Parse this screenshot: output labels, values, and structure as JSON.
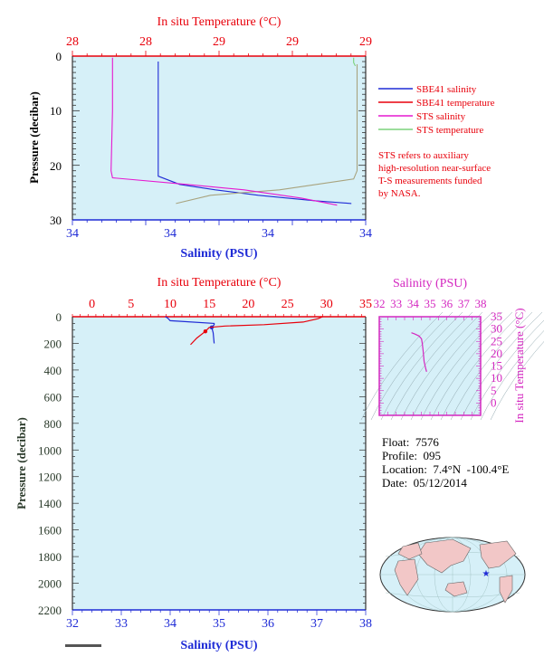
{
  "colors": {
    "plot_bg": "#d6f0f8",
    "red": "#e8000b",
    "blue": "#1f2bd6",
    "magenta": "#e619d0",
    "green": "#7bd27b",
    "olive": "#a8a37e",
    "pressure_label": "#2a3a2a",
    "legend_note": "#e8000b",
    "ts_panel": "#d428c0"
  },
  "top_panel": {
    "temp_title": "In situ Temperature (°C)",
    "salinity_title": "Salinity (PSU)",
    "pressure_title": "Pressure (decibar)",
    "temp_ticks": [
      "28",
      "28",
      "29",
      "29",
      "29"
    ],
    "salinity_ticks": [
      "34",
      "34",
      "34",
      "34"
    ],
    "pressure_ticks": [
      "0",
      "10",
      "20",
      "30"
    ],
    "legend": [
      {
        "label": "SBE41 salinity",
        "color": "#1f2bd6"
      },
      {
        "label": "SBE41 temperature",
        "color": "#e8000b"
      },
      {
        "label": "STS salinity",
        "color": "#e619d0"
      },
      {
        "label": "STS temperature",
        "color": "#7bd27b"
      }
    ],
    "note_lines": [
      "STS refers to auxiliary",
      "high-resolution near-surface",
      "T-S measurements funded",
      "by NASA."
    ]
  },
  "bottom_panel": {
    "temp_title": "In situ Temperature (°C)",
    "salinity_title": "Salinity (PSU)",
    "pressure_title": "Pressure (decibar)",
    "temp_ticks": [
      "0",
      "5",
      "10",
      "15",
      "20",
      "25",
      "30",
      "35"
    ],
    "salinity_ticks": [
      "32",
      "33",
      "34",
      "35",
      "36",
      "37",
      "38"
    ],
    "pressure_ticks": [
      "0",
      "200",
      "400",
      "600",
      "800",
      "1000",
      "1200",
      "1400",
      "1600",
      "1800",
      "2000",
      "2200"
    ]
  },
  "ts_diagram": {
    "salinity_title": "Salinity (PSU)",
    "temp_title": "In situ Temperature (°C)",
    "salinity_ticks": [
      "32",
      "33",
      "34",
      "35",
      "36",
      "37",
      "38"
    ],
    "temp_ticks": [
      "0",
      "5",
      "10",
      "15",
      "20",
      "25",
      "30",
      "35"
    ]
  },
  "float_info": {
    "float": "Float:  7576",
    "profile": "Profile:  095",
    "location": "Location:  7.4°N  -100.4°E",
    "date": "Date:  05/12/2014"
  },
  "chart_data": [
    {
      "type": "line",
      "title": "",
      "xlabel": "Salinity (PSU)",
      "x2label": "In situ Temperature (°C)",
      "ylabel": "Pressure (decibar)",
      "ylim": [
        30,
        0
      ],
      "series": [
        {
          "name": "SBE41 salinity",
          "x_units": "PSU",
          "points": [
            [
              33.7,
              1
            ],
            [
              33.7,
              10
            ],
            [
              33.7,
              22
            ],
            [
              33.85,
              23.5
            ],
            [
              34.1,
              24.5
            ],
            [
              34.4,
              25.5
            ],
            [
              34.8,
              26.5
            ],
            [
              35.05,
              27
            ]
          ]
        },
        {
          "name": "SBE41 temperature",
          "x_units": "degC",
          "points": [
            [
              28.95,
              1.5
            ],
            [
              28.95,
              10
            ],
            [
              28.95,
              21
            ],
            [
              28.93,
              22.5
            ],
            [
              28.5,
              24.5
            ],
            [
              28.1,
              25.5
            ],
            [
              27.9,
              27
            ]
          ]
        },
        {
          "name": "STS salinity",
          "x_units": "PSU",
          "points": [
            [
              33.38,
              0.3
            ],
            [
              33.38,
              10
            ],
            [
              33.37,
              21
            ],
            [
              33.38,
              22.3
            ],
            [
              33.9,
              23.5
            ],
            [
              34.3,
              24.5
            ],
            [
              34.7,
              26
            ],
            [
              34.95,
              27.3
            ]
          ]
        },
        {
          "name": "STS temperature",
          "x_units": "degC",
          "points": [
            [
              28.93,
              0.3
            ],
            [
              28.93,
              1.2
            ],
            [
              28.94,
              1.8
            ]
          ]
        }
      ]
    },
    {
      "type": "line",
      "title": "",
      "xlabel": "Salinity (PSU)",
      "x2label": "In situ Temperature (°C)",
      "ylabel": "Pressure (decibar)",
      "xlim": [
        32,
        38
      ],
      "x2lim": [
        0,
        35
      ],
      "ylim": [
        2200,
        0
      ],
      "series": [
        {
          "name": "SBE41 salinity",
          "x_units": "PSU",
          "points": [
            [
              33.9,
              0
            ],
            [
              33.95,
              10
            ],
            [
              34.0,
              30
            ],
            [
              34.9,
              50
            ],
            [
              34.9,
              60
            ],
            [
              34.85,
              80
            ],
            [
              34.88,
              120
            ],
            [
              34.9,
              200
            ]
          ]
        },
        {
          "name": "SBE41 temperature",
          "x_units": "degC",
          "points": [
            [
              29.5,
              0
            ],
            [
              28.9,
              15
            ],
            [
              27,
              40
            ],
            [
              22,
              60
            ],
            [
              17,
              70
            ],
            [
              15,
              80
            ],
            [
              14.5,
              110
            ],
            [
              13.4,
              160
            ],
            [
              12.6,
              210
            ]
          ]
        }
      ]
    },
    {
      "type": "line",
      "title": "",
      "xlabel": "Salinity (PSU)",
      "ylabel": "In situ Temperature (°C)",
      "xlim": [
        32,
        38
      ],
      "ylim": [
        -5,
        35
      ],
      "series": [
        {
          "name": "T-S profile",
          "points": [
            [
              33.9,
              28.5
            ],
            [
              34.1,
              28.0
            ],
            [
              34.35,
              27.2
            ],
            [
              34.5,
              26.0
            ],
            [
              34.55,
              24
            ],
            [
              34.6,
              21
            ],
            [
              34.65,
              17
            ],
            [
              34.75,
              14
            ],
            [
              34.8,
              12.7
            ]
          ]
        }
      ]
    }
  ]
}
